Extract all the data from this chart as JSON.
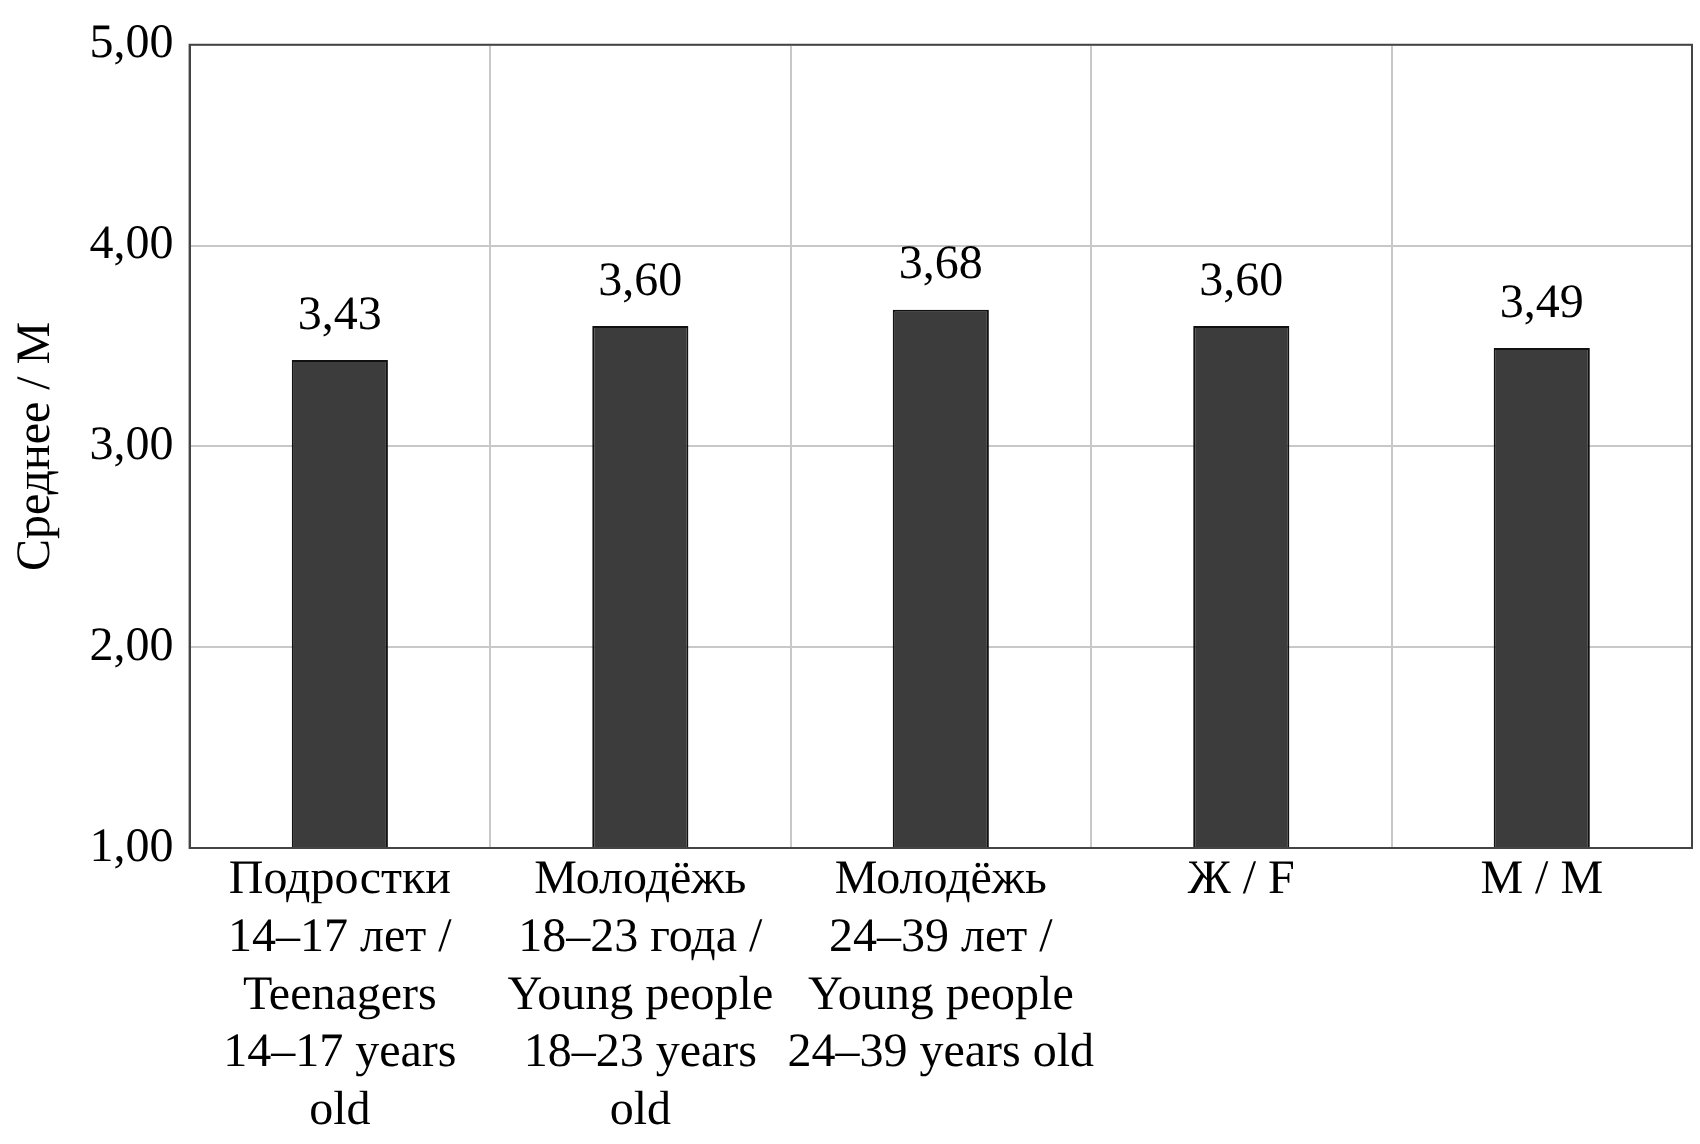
{
  "chart_data": {
    "type": "bar",
    "ylabel": "Среднее / M",
    "categories": [
      "Подростки\n14–17 лет /\nTeenagers\n14–17 years\nold",
      "Молодёжь\n18–23 года /\nYoung people\n18–23 years\nold",
      "Молодёжь\n24–39 лет /\nYoung people\n24–39 years old",
      "Ж / F",
      "М / M"
    ],
    "values": [
      3.43,
      3.6,
      3.68,
      3.6,
      3.49
    ],
    "value_labels": [
      "3,43",
      "3,60",
      "3,68",
      "3,60",
      "3,49"
    ],
    "color": "#3c3c3c",
    "ylim": [
      1,
      5
    ],
    "yticks": [
      {
        "value": 1,
        "label": "1,00"
      },
      {
        "value": 2,
        "label": "2,00"
      },
      {
        "value": 3,
        "label": "3,00"
      },
      {
        "value": 4,
        "label": "4,00"
      },
      {
        "value": 5,
        "label": "5,00"
      }
    ],
    "grid": true,
    "legend": false
  }
}
